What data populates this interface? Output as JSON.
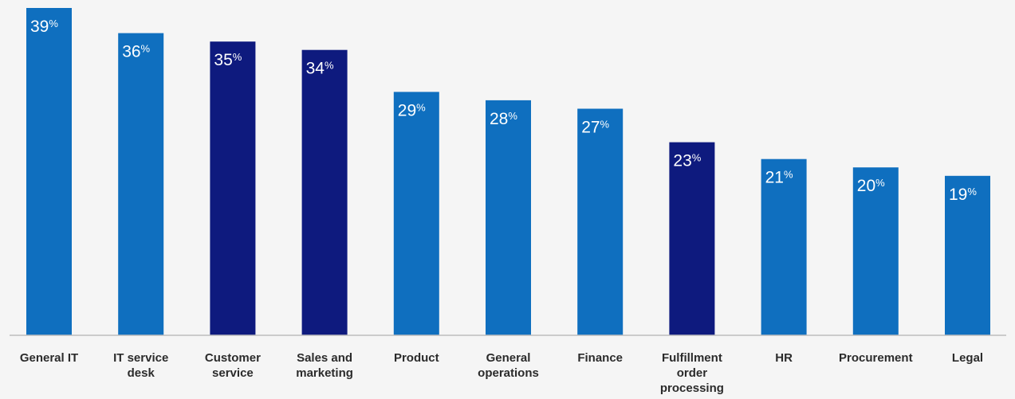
{
  "chart_data": {
    "type": "bar",
    "categories": [
      [
        "General IT"
      ],
      [
        "IT service",
        "desk"
      ],
      [
        "Customer",
        "service"
      ],
      [
        "Sales and",
        "marketing"
      ],
      [
        "Product"
      ],
      [
        "General",
        "operations"
      ],
      [
        "Finance"
      ],
      [
        "Fulfillment",
        "order",
        "processing"
      ],
      [
        "HR"
      ],
      [
        "Procurement"
      ],
      [
        "Legal"
      ]
    ],
    "values": [
      39,
      36,
      35,
      34,
      29,
      28,
      27,
      23,
      21,
      20,
      19
    ],
    "value_suffix": "%",
    "highlighted": [
      false,
      false,
      true,
      true,
      false,
      false,
      false,
      true,
      false,
      false,
      false
    ],
    "colors": {
      "bar": "#0f6fbf",
      "highlight": "#0e1a7e",
      "axis": "#bdbdbd",
      "label": "#2b2b2b",
      "background": "#f5f5f5"
    },
    "ylim": [
      0,
      39
    ],
    "grid": false,
    "title": "",
    "xlabel": "",
    "ylabel": ""
  }
}
